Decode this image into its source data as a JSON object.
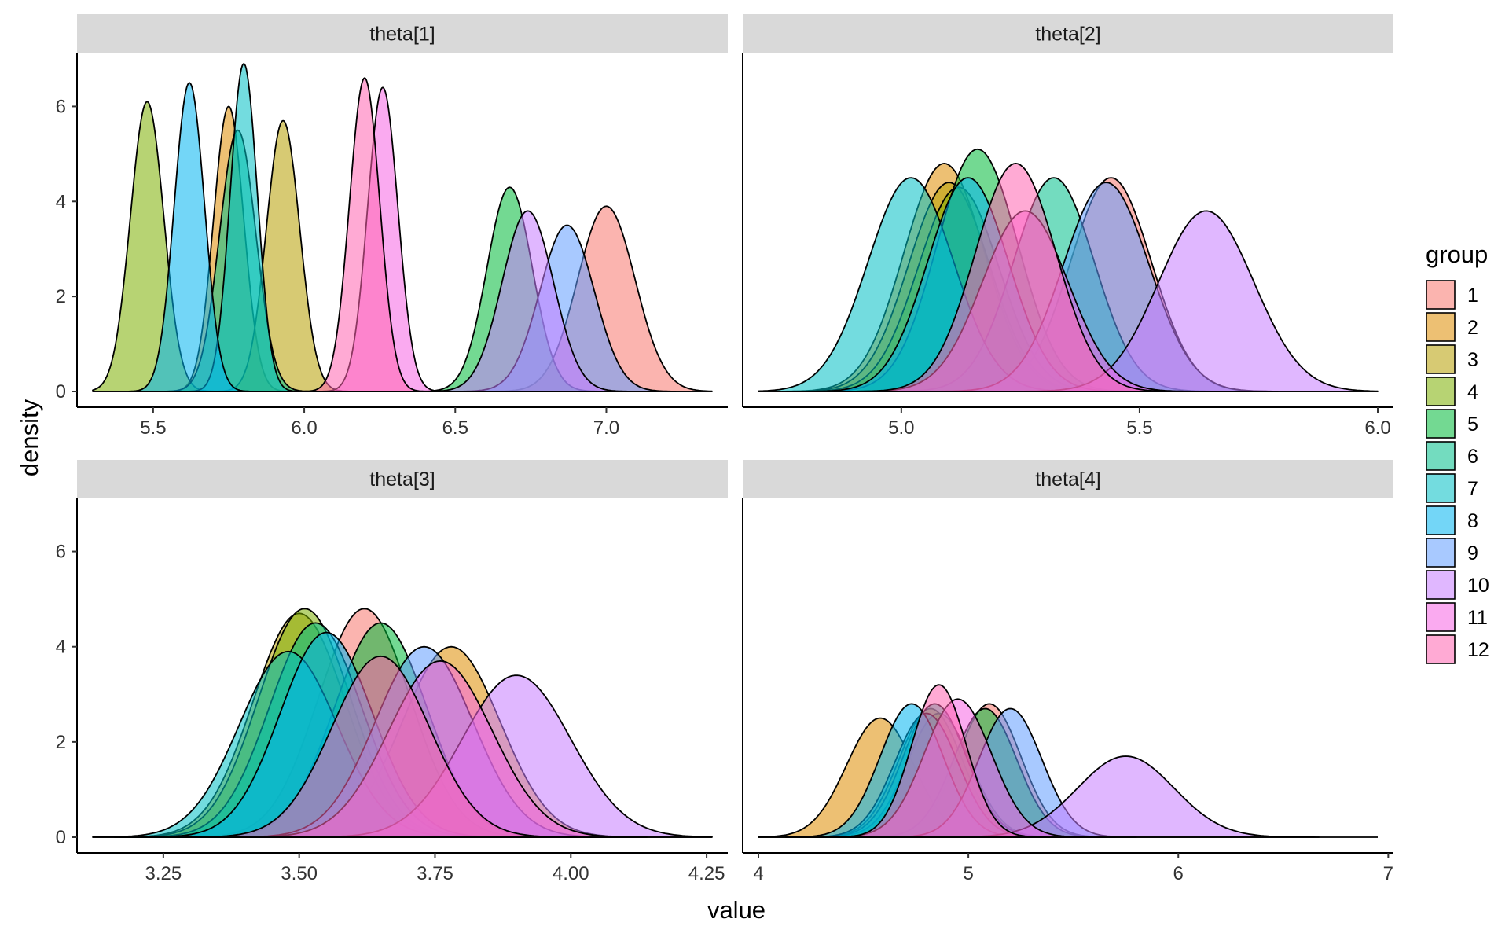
{
  "chart_data": {
    "type": "area",
    "subtype": "faceted-density",
    "xlabel": "value",
    "ylabel": "density",
    "ylim": [
      0,
      7
    ],
    "y_ticks": [
      0,
      2,
      4,
      6
    ],
    "legend": {
      "title": "group",
      "position": "right",
      "entries": [
        "1",
        "2",
        "3",
        "4",
        "5",
        "6",
        "7",
        "8",
        "9",
        "10",
        "11",
        "12"
      ]
    },
    "colors": [
      "#F8766D",
      "#DE8C00",
      "#B79F00",
      "#7CAE00",
      "#00BA38",
      "#00C08B",
      "#00BFC4",
      "#00B4F0",
      "#619CFF",
      "#C77CFF",
      "#F564E3",
      "#FF64B0"
    ],
    "fill_opacity": 0.55,
    "grid": false,
    "facets": [
      {
        "strip": "theta[1]",
        "xlim": [
          5.3,
          7.35
        ],
        "x_ticks": [
          5.5,
          6.0,
          6.5,
          7.0
        ],
        "x_tick_labels": [
          "5.5",
          "6.0",
          "6.5",
          "7.0"
        ],
        "groups": [
          {
            "group": "1",
            "mean": 7.0,
            "sd": 0.095,
            "peak": 3.9
          },
          {
            "group": "2",
            "mean": 5.75,
            "sd": 0.05,
            "peak": 6.0
          },
          {
            "group": "3",
            "mean": 5.93,
            "sd": 0.055,
            "peak": 5.7
          },
          {
            "group": "4",
            "mean": 5.48,
            "sd": 0.055,
            "peak": 6.1
          },
          {
            "group": "5",
            "mean": 6.68,
            "sd": 0.075,
            "peak": 4.3
          },
          {
            "group": "6",
            "mean": 5.78,
            "sd": 0.06,
            "peak": 5.5
          },
          {
            "group": "7",
            "mean": 5.8,
            "sd": 0.045,
            "peak": 6.9
          },
          {
            "group": "8",
            "mean": 5.62,
            "sd": 0.05,
            "peak": 6.5
          },
          {
            "group": "9",
            "mean": 6.87,
            "sd": 0.09,
            "peak": 3.5
          },
          {
            "group": "10",
            "mean": 6.74,
            "sd": 0.085,
            "peak": 3.8
          },
          {
            "group": "11",
            "mean": 6.26,
            "sd": 0.05,
            "peak": 6.4
          },
          {
            "group": "12",
            "mean": 6.2,
            "sd": 0.05,
            "peak": 6.6
          }
        ]
      },
      {
        "strip": "theta[2]",
        "xlim": [
          4.7,
          6.0
        ],
        "x_ticks": [
          5.0,
          5.5,
          6.0
        ],
        "x_tick_labels": [
          "5.0",
          "5.5",
          "6.0"
        ],
        "groups": [
          {
            "group": "1",
            "mean": 5.44,
            "sd": 0.085,
            "peak": 4.5
          },
          {
            "group": "2",
            "mean": 5.09,
            "sd": 0.085,
            "peak": 4.8
          },
          {
            "group": "3",
            "mean": 5.1,
            "sd": 0.085,
            "peak": 4.4
          },
          {
            "group": "4",
            "mean": 5.12,
            "sd": 0.085,
            "peak": 4.3
          },
          {
            "group": "5",
            "mean": 5.16,
            "sd": 0.085,
            "peak": 5.1
          },
          {
            "group": "6",
            "mean": 5.32,
            "sd": 0.085,
            "peak": 4.5
          },
          {
            "group": "7",
            "mean": 5.02,
            "sd": 0.09,
            "peak": 4.5
          },
          {
            "group": "8",
            "mean": 5.14,
            "sd": 0.085,
            "peak": 4.5
          },
          {
            "group": "9",
            "mean": 5.43,
            "sd": 0.09,
            "peak": 4.4
          },
          {
            "group": "10",
            "mean": 5.64,
            "sd": 0.1,
            "peak": 3.8
          },
          {
            "group": "11",
            "mean": 5.26,
            "sd": 0.09,
            "peak": 3.8
          },
          {
            "group": "12",
            "mean": 5.24,
            "sd": 0.085,
            "peak": 4.8
          }
        ]
      },
      {
        "strip": "theta[3]",
        "xlim": [
          3.12,
          4.26
        ],
        "x_ticks": [
          3.25,
          3.5,
          3.75,
          4.0,
          4.25
        ],
        "x_tick_labels": [
          "3.25",
          "3.50",
          "3.75",
          "4.00",
          "4.25"
        ],
        "groups": [
          {
            "group": "1",
            "mean": 3.62,
            "sd": 0.085,
            "peak": 4.8
          },
          {
            "group": "2",
            "mean": 3.78,
            "sd": 0.09,
            "peak": 4.0
          },
          {
            "group": "3",
            "mean": 3.5,
            "sd": 0.085,
            "peak": 4.7
          },
          {
            "group": "4",
            "mean": 3.51,
            "sd": 0.085,
            "peak": 4.8
          },
          {
            "group": "5",
            "mean": 3.65,
            "sd": 0.085,
            "peak": 4.5
          },
          {
            "group": "6",
            "mean": 3.53,
            "sd": 0.085,
            "peak": 4.5
          },
          {
            "group": "7",
            "mean": 3.48,
            "sd": 0.09,
            "peak": 3.9
          },
          {
            "group": "8",
            "mean": 3.55,
            "sd": 0.085,
            "peak": 4.3
          },
          {
            "group": "9",
            "mean": 3.73,
            "sd": 0.09,
            "peak": 4.0
          },
          {
            "group": "10",
            "mean": 3.9,
            "sd": 0.1,
            "peak": 3.4
          },
          {
            "group": "11",
            "mean": 3.76,
            "sd": 0.095,
            "peak": 3.7
          },
          {
            "group": "12",
            "mean": 3.65,
            "sd": 0.09,
            "peak": 3.8
          }
        ]
      },
      {
        "strip": "theta[4]",
        "xlim": [
          4.0,
          6.95
        ],
        "x_ticks": [
          4,
          5,
          6,
          7
        ],
        "x_tick_labels": [
          "4",
          "5",
          "6",
          "7"
        ],
        "groups": [
          {
            "group": "1",
            "mean": 5.1,
            "sd": 0.15,
            "peak": 2.8
          },
          {
            "group": "2",
            "mean": 4.58,
            "sd": 0.16,
            "peak": 2.5
          },
          {
            "group": "3",
            "mean": 4.82,
            "sd": 0.15,
            "peak": 2.7
          },
          {
            "group": "4",
            "mean": 4.86,
            "sd": 0.15,
            "peak": 2.6
          },
          {
            "group": "5",
            "mean": 5.08,
            "sd": 0.15,
            "peak": 2.7
          },
          {
            "group": "6",
            "mean": 4.84,
            "sd": 0.15,
            "peak": 2.8
          },
          {
            "group": "7",
            "mean": 4.8,
            "sd": 0.15,
            "peak": 2.6
          },
          {
            "group": "8",
            "mean": 4.73,
            "sd": 0.15,
            "peak": 2.8
          },
          {
            "group": "9",
            "mean": 5.2,
            "sd": 0.15,
            "peak": 2.7
          },
          {
            "group": "10",
            "mean": 5.75,
            "sd": 0.23,
            "peak": 1.7
          },
          {
            "group": "11",
            "mean": 4.95,
            "sd": 0.16,
            "peak": 2.9
          },
          {
            "group": "12",
            "mean": 4.86,
            "sd": 0.13,
            "peak": 3.2
          }
        ]
      }
    ]
  }
}
